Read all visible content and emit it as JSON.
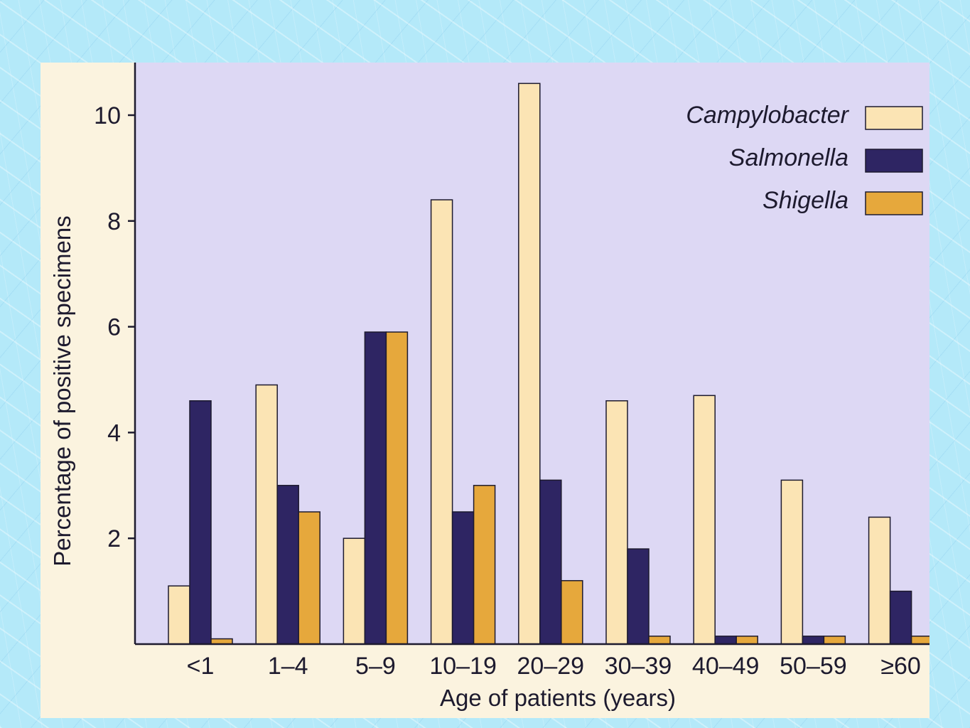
{
  "chart_data": {
    "type": "bar",
    "title": "",
    "xlabel": "Age of patients (years)",
    "ylabel": "Percentage of positive specimens",
    "categories": [
      "<1",
      "1–4",
      "5–9",
      "10–19",
      "20–29",
      "30–39",
      "40–49",
      "50–59",
      "≥60"
    ],
    "series": [
      {
        "name": "Campylobacter",
        "color": "#fbe4b4",
        "values": [
          1.1,
          4.9,
          2.0,
          8.4,
          10.6,
          4.6,
          4.7,
          3.1,
          2.4
        ]
      },
      {
        "name": "Salmonella",
        "color": "#2e2563",
        "values": [
          4.6,
          3.0,
          5.9,
          2.5,
          3.1,
          1.8,
          0.15,
          0.15,
          1.0
        ]
      },
      {
        "name": "Shigella",
        "color": "#e6a83c",
        "values": [
          0.1,
          2.5,
          5.9,
          3.0,
          1.2,
          0.15,
          0.15,
          0.15,
          0.15
        ]
      }
    ],
    "yticks": [
      2,
      4,
      6,
      8,
      10
    ],
    "ylim": [
      0,
      11
    ],
    "grid": false,
    "legend": "top-right",
    "plot_background": "#ddd8f4"
  }
}
